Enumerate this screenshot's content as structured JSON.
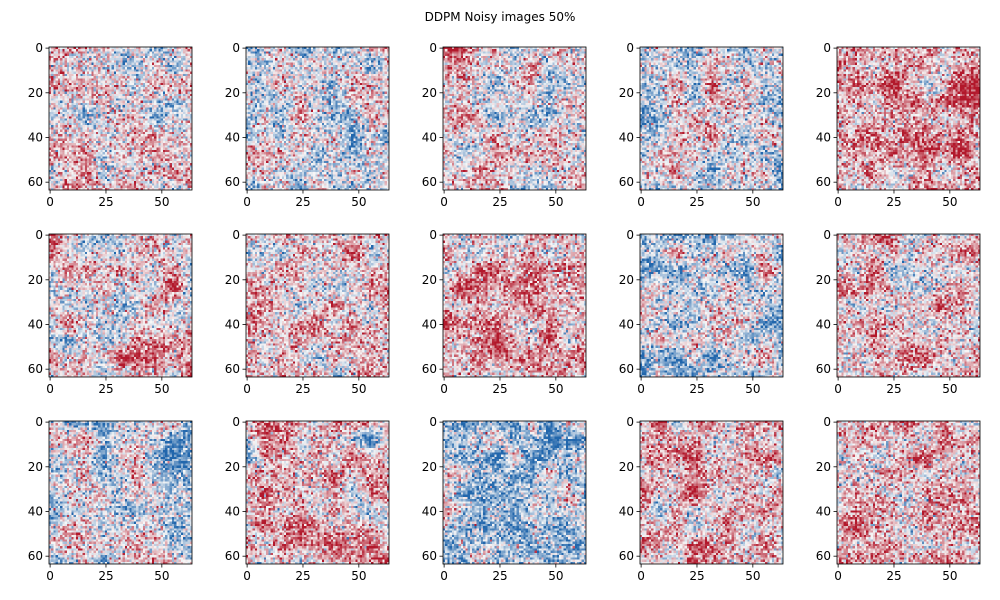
{
  "figure": {
    "suptitle": "DDPM Noisy images 50%"
  },
  "chart_data": {
    "type": "heatmap",
    "title": "DDPM Noisy images 50%",
    "grid": {
      "rows": 3,
      "cols": 5
    },
    "image_size": [
      64,
      64
    ],
    "colormap": "diverging blue-white-red",
    "colors": {
      "low": "#2166ac",
      "mid": "#f7f7f7",
      "high": "#b2182b"
    },
    "xticks": [
      "0",
      "25",
      "50"
    ],
    "yticks": [
      "0",
      "20",
      "40",
      "60"
    ],
    "xlim": [
      -0.5,
      63.5
    ],
    "ylim": [
      63.5,
      -0.5
    ],
    "panel_bias": [
      [
        0.05,
        -0.1,
        0.08,
        -0.12,
        0.3
      ],
      [
        0.12,
        0.15,
        0.25,
        -0.15,
        0.18
      ],
      [
        -0.2,
        0.25,
        -0.3,
        0.25,
        0.22
      ]
    ]
  }
}
